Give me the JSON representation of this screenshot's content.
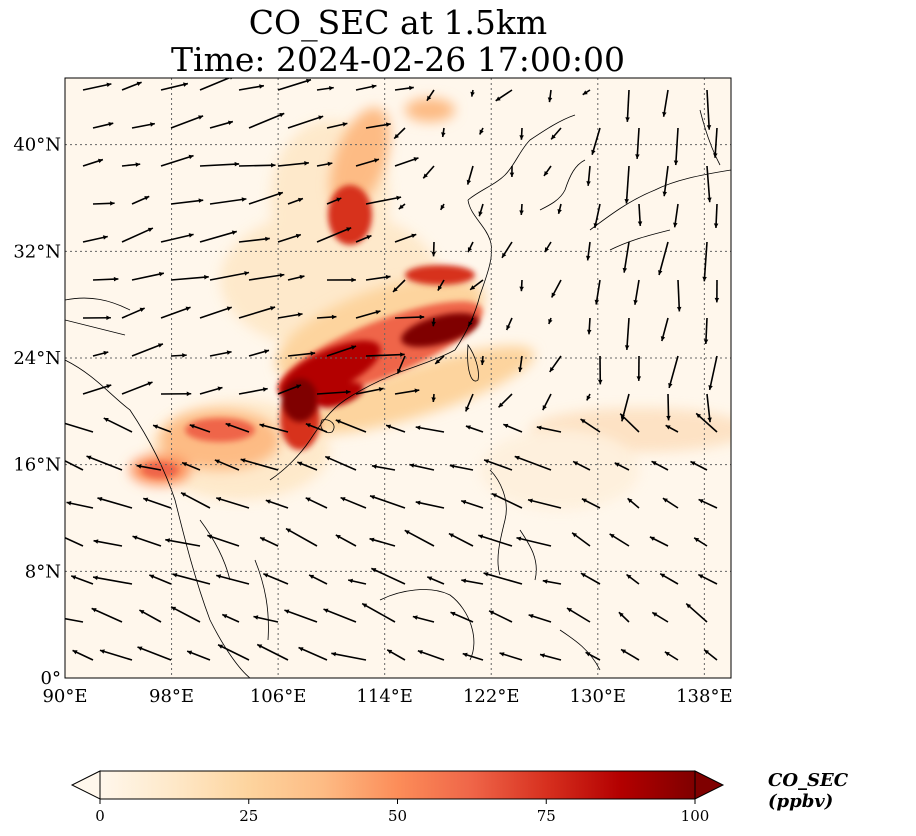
{
  "title": {
    "line1": "CO_SEC at 1.5km",
    "line2": "Time: 2024-02-26 17:00:00"
  },
  "map": {
    "lon_range": [
      90,
      140
    ],
    "lat_range": [
      0,
      45
    ],
    "lon_ticks": [
      "90°E",
      "98°E",
      "106°E",
      "114°E",
      "122°E",
      "130°E",
      "138°E"
    ],
    "lat_ticks": [
      "0°",
      "8°N",
      "16°N",
      "24°N",
      "32°N",
      "40°N"
    ],
    "gridlines": true,
    "coastlines": true,
    "wind_vectors": true
  },
  "colorbar": {
    "label": "CO_SEC (ppbv)",
    "ticks": [
      "0",
      "25",
      "50",
      "75",
      "100"
    ],
    "range": [
      0,
      100
    ],
    "extend": "both",
    "colormap": "OrRd",
    "colors": [
      "#fff7ec",
      "#fee8c8",
      "#fdd49e",
      "#fdbb84",
      "#fc8d59",
      "#ef6548",
      "#d7301f",
      "#b30000",
      "#7f0000"
    ]
  }
}
